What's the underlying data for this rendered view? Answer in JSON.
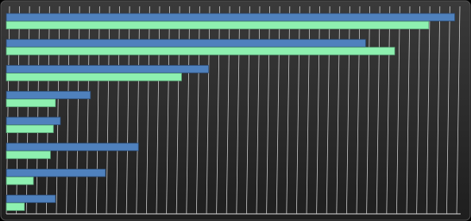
{
  "chart_data": {
    "type": "hbar",
    "categories": [
      null,
      null,
      null,
      null,
      null,
      null,
      null,
      null
    ],
    "series": [
      {
        "color": "#4f81bd",
        "values": [
          44.8,
          35.9,
          20.2,
          8.4,
          5.4,
          13.2,
          9.9,
          4.9
        ]
      },
      {
        "color": "#8ef0b0",
        "values": [
          42.2,
          38.8,
          17.5,
          4.9,
          4.7,
          4.4,
          2.7,
          1.8
        ]
      }
    ],
    "xlim": [
      0,
      45
    ],
    "xticks": [
      0,
      1,
      2,
      3,
      4,
      5,
      6,
      7,
      8,
      9,
      10,
      11,
      12,
      13,
      14,
      15,
      16,
      17,
      18,
      19,
      20,
      21,
      22,
      23,
      24,
      25,
      26,
      27,
      28,
      29,
      30,
      31,
      32,
      33,
      34,
      35,
      36,
      37,
      38,
      39,
      40,
      41,
      42,
      43,
      44,
      45
    ],
    "grid": true
  }
}
